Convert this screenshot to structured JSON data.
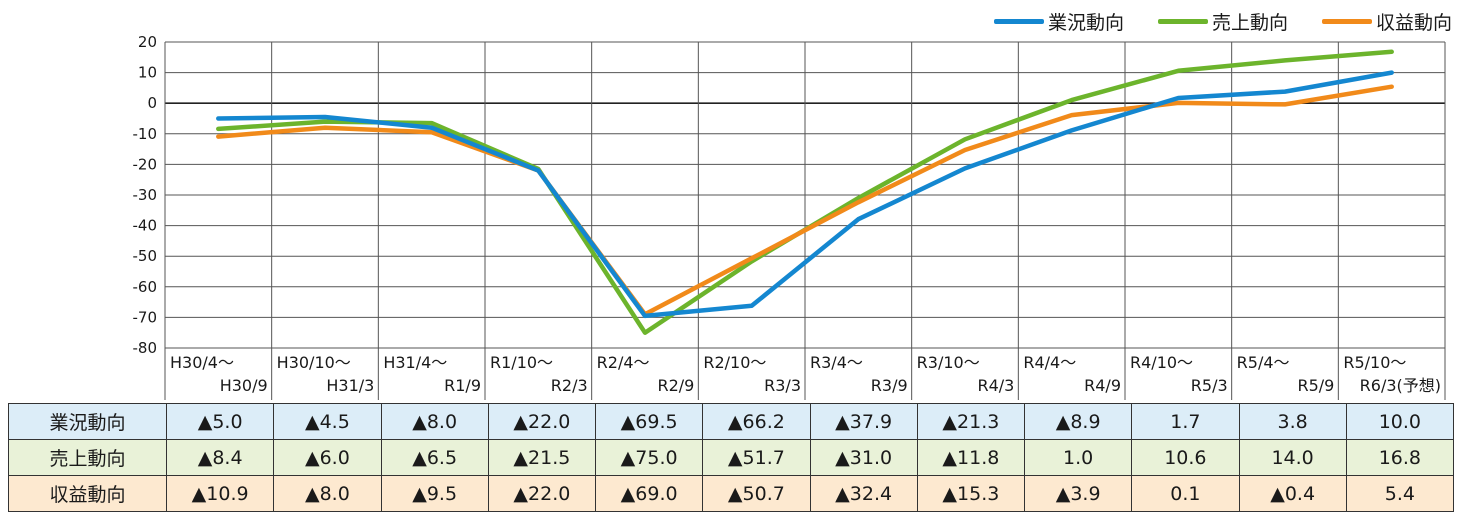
{
  "legend": [
    {
      "name": "業況動向",
      "color": "#1487d0"
    },
    {
      "name": "売上動向",
      "color": "#6cb42c"
    },
    {
      "name": "収益動向",
      "color": "#f18a1a"
    }
  ],
  "chart_data": {
    "type": "line",
    "ylim": [
      -80,
      20
    ],
    "yticks": [
      20,
      10,
      0,
      -10,
      -20,
      -30,
      -40,
      -50,
      -60,
      -70,
      -80
    ],
    "grid": true,
    "legend_position": "top-right",
    "periods": [
      {
        "start": "H30/4～",
        "end": "H30/9"
      },
      {
        "start": "H30/10～",
        "end": "H31/3"
      },
      {
        "start": "H31/4～",
        "end": "R1/9"
      },
      {
        "start": "R1/10～",
        "end": "R2/3"
      },
      {
        "start": "R2/4～",
        "end": "R2/9"
      },
      {
        "start": "R2/10～",
        "end": "R3/3"
      },
      {
        "start": "R3/4～",
        "end": "R3/9"
      },
      {
        "start": "R3/10～",
        "end": "R4/3"
      },
      {
        "start": "R4/4～",
        "end": "R4/9"
      },
      {
        "start": "R4/10～",
        "end": "R5/3"
      },
      {
        "start": "R5/4～",
        "end": "R5/9"
      },
      {
        "start": "R5/10～",
        "end": "R6/3(予想)"
      }
    ],
    "series": [
      {
        "name": "業況動向",
        "color": "#1487d0",
        "row_bg": "#dcedf8",
        "values": [
          -5.0,
          -4.5,
          -8.0,
          -22.0,
          -69.5,
          -66.2,
          -37.9,
          -21.3,
          -8.9,
          1.7,
          3.8,
          10.0
        ],
        "labels": [
          "▲5.0",
          "▲4.5",
          "▲8.0",
          "▲22.0",
          "▲69.5",
          "▲66.2",
          "▲37.9",
          "▲21.3",
          "▲8.9",
          "1.7",
          "3.8",
          "10.0"
        ]
      },
      {
        "name": "売上動向",
        "color": "#6cb42c",
        "row_bg": "#e9f2d8",
        "values": [
          -8.4,
          -6.0,
          -6.5,
          -21.5,
          -75.0,
          -51.7,
          -31.0,
          -11.8,
          1.0,
          10.6,
          14.0,
          16.8
        ],
        "labels": [
          "▲8.4",
          "▲6.0",
          "▲6.5",
          "▲21.5",
          "▲75.0",
          "▲51.7",
          "▲31.0",
          "▲11.8",
          "1.0",
          "10.6",
          "14.0",
          "16.8"
        ]
      },
      {
        "name": "収益動向",
        "color": "#f18a1a",
        "row_bg": "#fde9d0",
        "values": [
          -10.9,
          -8.0,
          -9.5,
          -22.0,
          -69.0,
          -50.7,
          -32.4,
          -15.3,
          -3.9,
          0.1,
          -0.4,
          5.4
        ],
        "labels": [
          "▲10.9",
          "▲8.0",
          "▲9.5",
          "▲22.0",
          "▲69.0",
          "▲50.7",
          "▲32.4",
          "▲15.3",
          "▲3.9",
          "0.1",
          "▲0.4",
          "5.4"
        ]
      }
    ]
  }
}
